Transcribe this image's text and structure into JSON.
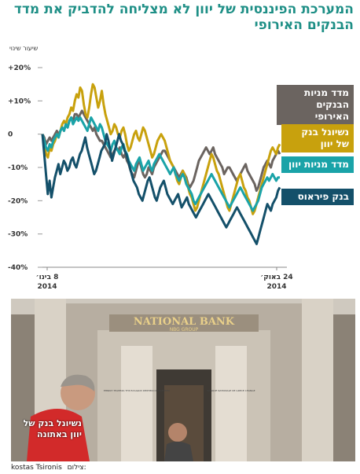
{
  "headline": "המערכת הפיננסית של יוון לא מצליחה להדביק את מדד הבנקים האירופי",
  "legend": [
    {
      "label": "מדד מניות הבנקים האירופי",
      "color": "#6b6460"
    },
    {
      "label": "נשיונל בנק של יוון",
      "color": "#c8a10d"
    },
    {
      "label": "מדד מניות יוון",
      "color": "#1aa3a8"
    },
    {
      "label": "בנק פיראוס",
      "color": "#14506a"
    }
  ],
  "chart_data": {
    "type": "line",
    "ylabel": "שיעור שינוי",
    "yticks": [
      "+20%",
      "+10%",
      "0",
      "-10%",
      "-20%",
      "-30%",
      "-40%"
    ],
    "ylim": [
      -40,
      20
    ],
    "xticks": [
      {
        "label": "8 בינו׳",
        "sub": "2014"
      },
      {
        "label": "24 באוק׳",
        "sub": "2014"
      }
    ],
    "grid": false,
    "series": [
      {
        "name": "מדד מניות הבנקים האירופי",
        "color": "#6b6460",
        "values": [
          0,
          -1,
          -3,
          -2,
          -1,
          -2,
          -1,
          0,
          1,
          0,
          1,
          2,
          1,
          3,
          2,
          4,
          5,
          4,
          6,
          6,
          5,
          6,
          7,
          6,
          5,
          4,
          3,
          2,
          1,
          2,
          0,
          -1,
          -2,
          -2,
          -3,
          -4,
          -5,
          -6,
          -7,
          -6,
          -5,
          -4,
          -5,
          -4,
          -6,
          -7,
          -6,
          -8,
          -9,
          -11,
          -12,
          -13,
          -11,
          -9,
          -8,
          -10,
          -12,
          -13,
          -12,
          -10,
          -11,
          -12,
          -10,
          -9,
          -8,
          -7,
          -6,
          -5,
          -5,
          -6,
          -7,
          -8,
          -9,
          -10,
          -11,
          -12,
          -13,
          -12,
          -11,
          -12,
          -13,
          -15,
          -16,
          -15,
          -14,
          -12,
          -10,
          -8,
          -7,
          -6,
          -5,
          -4,
          -5,
          -6,
          -5,
          -4,
          -6,
          -7,
          -8,
          -9,
          -10,
          -12,
          -11,
          -10,
          -10,
          -11,
          -12,
          -13,
          -14,
          -13,
          -12,
          -11,
          -10,
          -9,
          -11,
          -12,
          -13,
          -14,
          -15,
          -17,
          -16,
          -14,
          -12,
          -10,
          -9,
          -8,
          -9,
          -10,
          -8,
          -7,
          -6,
          -5,
          -6
        ]
      },
      {
        "name": "נשיונל בנק של יוון",
        "color": "#c8a10d",
        "values": [
          0,
          -3,
          -6,
          -7,
          -4,
          -5,
          -3,
          -2,
          0,
          -1,
          1,
          3,
          4,
          3,
          5,
          6,
          8,
          7,
          10,
          12,
          11,
          14,
          13,
          9,
          6,
          5,
          8,
          12,
          15,
          14,
          11,
          8,
          10,
          13,
          9,
          6,
          4,
          2,
          0,
          1,
          3,
          2,
          0,
          -1,
          1,
          2,
          0,
          -3,
          -5,
          -4,
          -2,
          0,
          1,
          -1,
          -2,
          0,
          2,
          1,
          -1,
          -3,
          -5,
          -7,
          -6,
          -4,
          -2,
          -1,
          0,
          -1,
          -2,
          -4,
          -6,
          -8,
          -9,
          -10,
          -12,
          -14,
          -15,
          -13,
          -11,
          -12,
          -14,
          -16,
          -18,
          -19,
          -21,
          -23,
          -22,
          -20,
          -18,
          -16,
          -14,
          -12,
          -10,
          -8,
          -6,
          -7,
          -9,
          -11,
          -12,
          -14,
          -16,
          -18,
          -20,
          -22,
          -23,
          -21,
          -19,
          -17,
          -15,
          -13,
          -12,
          -14,
          -16,
          -17,
          -19,
          -20,
          -22,
          -24,
          -23,
          -21,
          -19,
          -17,
          -15,
          -13,
          -11,
          -9,
          -7,
          -5,
          -4,
          -5,
          -6,
          -4,
          -3
        ]
      },
      {
        "name": "מדד מניות יוון",
        "color": "#1aa3a8",
        "values": [
          0,
          -2,
          -4,
          -5,
          -3,
          -4,
          -2,
          -1,
          0,
          -1,
          1,
          2,
          1,
          3,
          2,
          4,
          5,
          3,
          4,
          5,
          4,
          5,
          4,
          3,
          2,
          1,
          3,
          5,
          4,
          3,
          2,
          1,
          3,
          2,
          0,
          -2,
          -3,
          -4,
          -5,
          -3,
          -2,
          -4,
          -5,
          -6,
          -4,
          -3,
          -5,
          -6,
          -8,
          -9,
          -10,
          -11,
          -9,
          -8,
          -7,
          -9,
          -11,
          -10,
          -9,
          -8,
          -10,
          -11,
          -9,
          -8,
          -7,
          -6,
          -7,
          -8,
          -9,
          -10,
          -11,
          -12,
          -11,
          -10,
          -12,
          -13,
          -14,
          -13,
          -12,
          -13,
          -15,
          -16,
          -17,
          -18,
          -20,
          -21,
          -20,
          -19,
          -18,
          -17,
          -16,
          -15,
          -14,
          -13,
          -12,
          -13,
          -14,
          -15,
          -16,
          -17,
          -18,
          -19,
          -20,
          -21,
          -22,
          -21,
          -20,
          -19,
          -18,
          -17,
          -16,
          -17,
          -18,
          -19,
          -20,
          -21,
          -22,
          -23,
          -22,
          -21,
          -20,
          -18,
          -16,
          -15,
          -14,
          -13,
          -14,
          -13,
          -12,
          -13,
          -14,
          -13,
          -13
        ]
      },
      {
        "name": "בנק פיראוס",
        "color": "#14506a",
        "values": [
          0,
          -6,
          -12,
          -18,
          -14,
          -19,
          -16,
          -13,
          -11,
          -9,
          -12,
          -10,
          -8,
          -9,
          -11,
          -10,
          -8,
          -7,
          -9,
          -10,
          -8,
          -6,
          -5,
          -3,
          -1,
          -4,
          -6,
          -8,
          -10,
          -12,
          -11,
          -9,
          -7,
          -5,
          -4,
          -3,
          0,
          -2,
          -5,
          -8,
          -6,
          -4,
          -2,
          0,
          -2,
          -3,
          -5,
          -6,
          -8,
          -10,
          -12,
          -14,
          -15,
          -16,
          -18,
          -19,
          -20,
          -18,
          -16,
          -14,
          -13,
          -15,
          -17,
          -19,
          -20,
          -18,
          -16,
          -15,
          -14,
          -16,
          -18,
          -19,
          -20,
          -21,
          -20,
          -19,
          -18,
          -20,
          -22,
          -21,
          -20,
          -19,
          -21,
          -22,
          -23,
          -24,
          -25,
          -24,
          -23,
          -22,
          -21,
          -20,
          -19,
          -18,
          -19,
          -20,
          -21,
          -22,
          -23,
          -24,
          -25,
          -26,
          -27,
          -28,
          -27,
          -26,
          -25,
          -24,
          -23,
          -22,
          -23,
          -24,
          -25,
          -26,
          -27,
          -28,
          -29,
          -30,
          -31,
          -32,
          -33,
          -31,
          -29,
          -27,
          -25,
          -23,
          -21,
          -22,
          -23,
          -21,
          -20,
          -19,
          -17,
          -16
        ]
      }
    ]
  },
  "photo": {
    "sign_main": "NATIONAL BANK",
    "sign_sub": "NBG GROUP",
    "plaque_left": "ΕΘΝΙΚΗ ΤΡΑΠΕΖΑ ΤΗΣ ΕΛΛΑΔΟΣ ΚΕΝΤΡΙΚΟ ΚΑΤΑΣΤΗΜΑ",
    "plaque_right": "BANQUE NATIONALE DE GRECE CHANGE",
    "overlay_caption": "נשיונל בנק של יוון באתונה",
    "credit_label": "צילום:",
    "credit_name": "kostas Tsironis"
  }
}
